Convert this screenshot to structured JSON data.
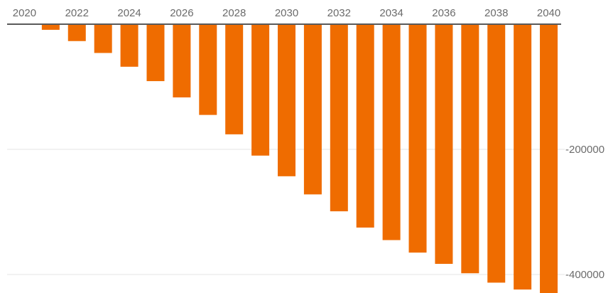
{
  "chart_data": {
    "type": "bar",
    "title": "",
    "xlabel": "",
    "ylabel": "",
    "bar_color": "#ef6c00",
    "grid": true,
    "x_axis_position": "top",
    "y_axis_position": "right",
    "ylim": [
      -430000,
      0
    ],
    "y_ticks": [
      {
        "value": -200000,
        "label": "-200000"
      },
      {
        "value": -400000,
        "label": "-400000"
      }
    ],
    "x_ticks": [
      "2020",
      "2022",
      "2024",
      "2026",
      "2028",
      "2030",
      "2032",
      "2034",
      "2036",
      "2038",
      "2040"
    ],
    "categories": [
      "2020",
      "2021",
      "2022",
      "2023",
      "2024",
      "2025",
      "2026",
      "2027",
      "2028",
      "2029",
      "2030",
      "2031",
      "2032",
      "2033",
      "2034",
      "2035",
      "2036",
      "2037",
      "2038",
      "2039",
      "2040"
    ],
    "values": [
      -1000,
      -9000,
      -27000,
      -46000,
      -68000,
      -91000,
      -117000,
      -145000,
      -176000,
      -210000,
      -243000,
      -272000,
      -299000,
      -325000,
      -345000,
      -365000,
      -383000,
      -398000,
      -413000,
      -424000,
      -432000
    ]
  }
}
